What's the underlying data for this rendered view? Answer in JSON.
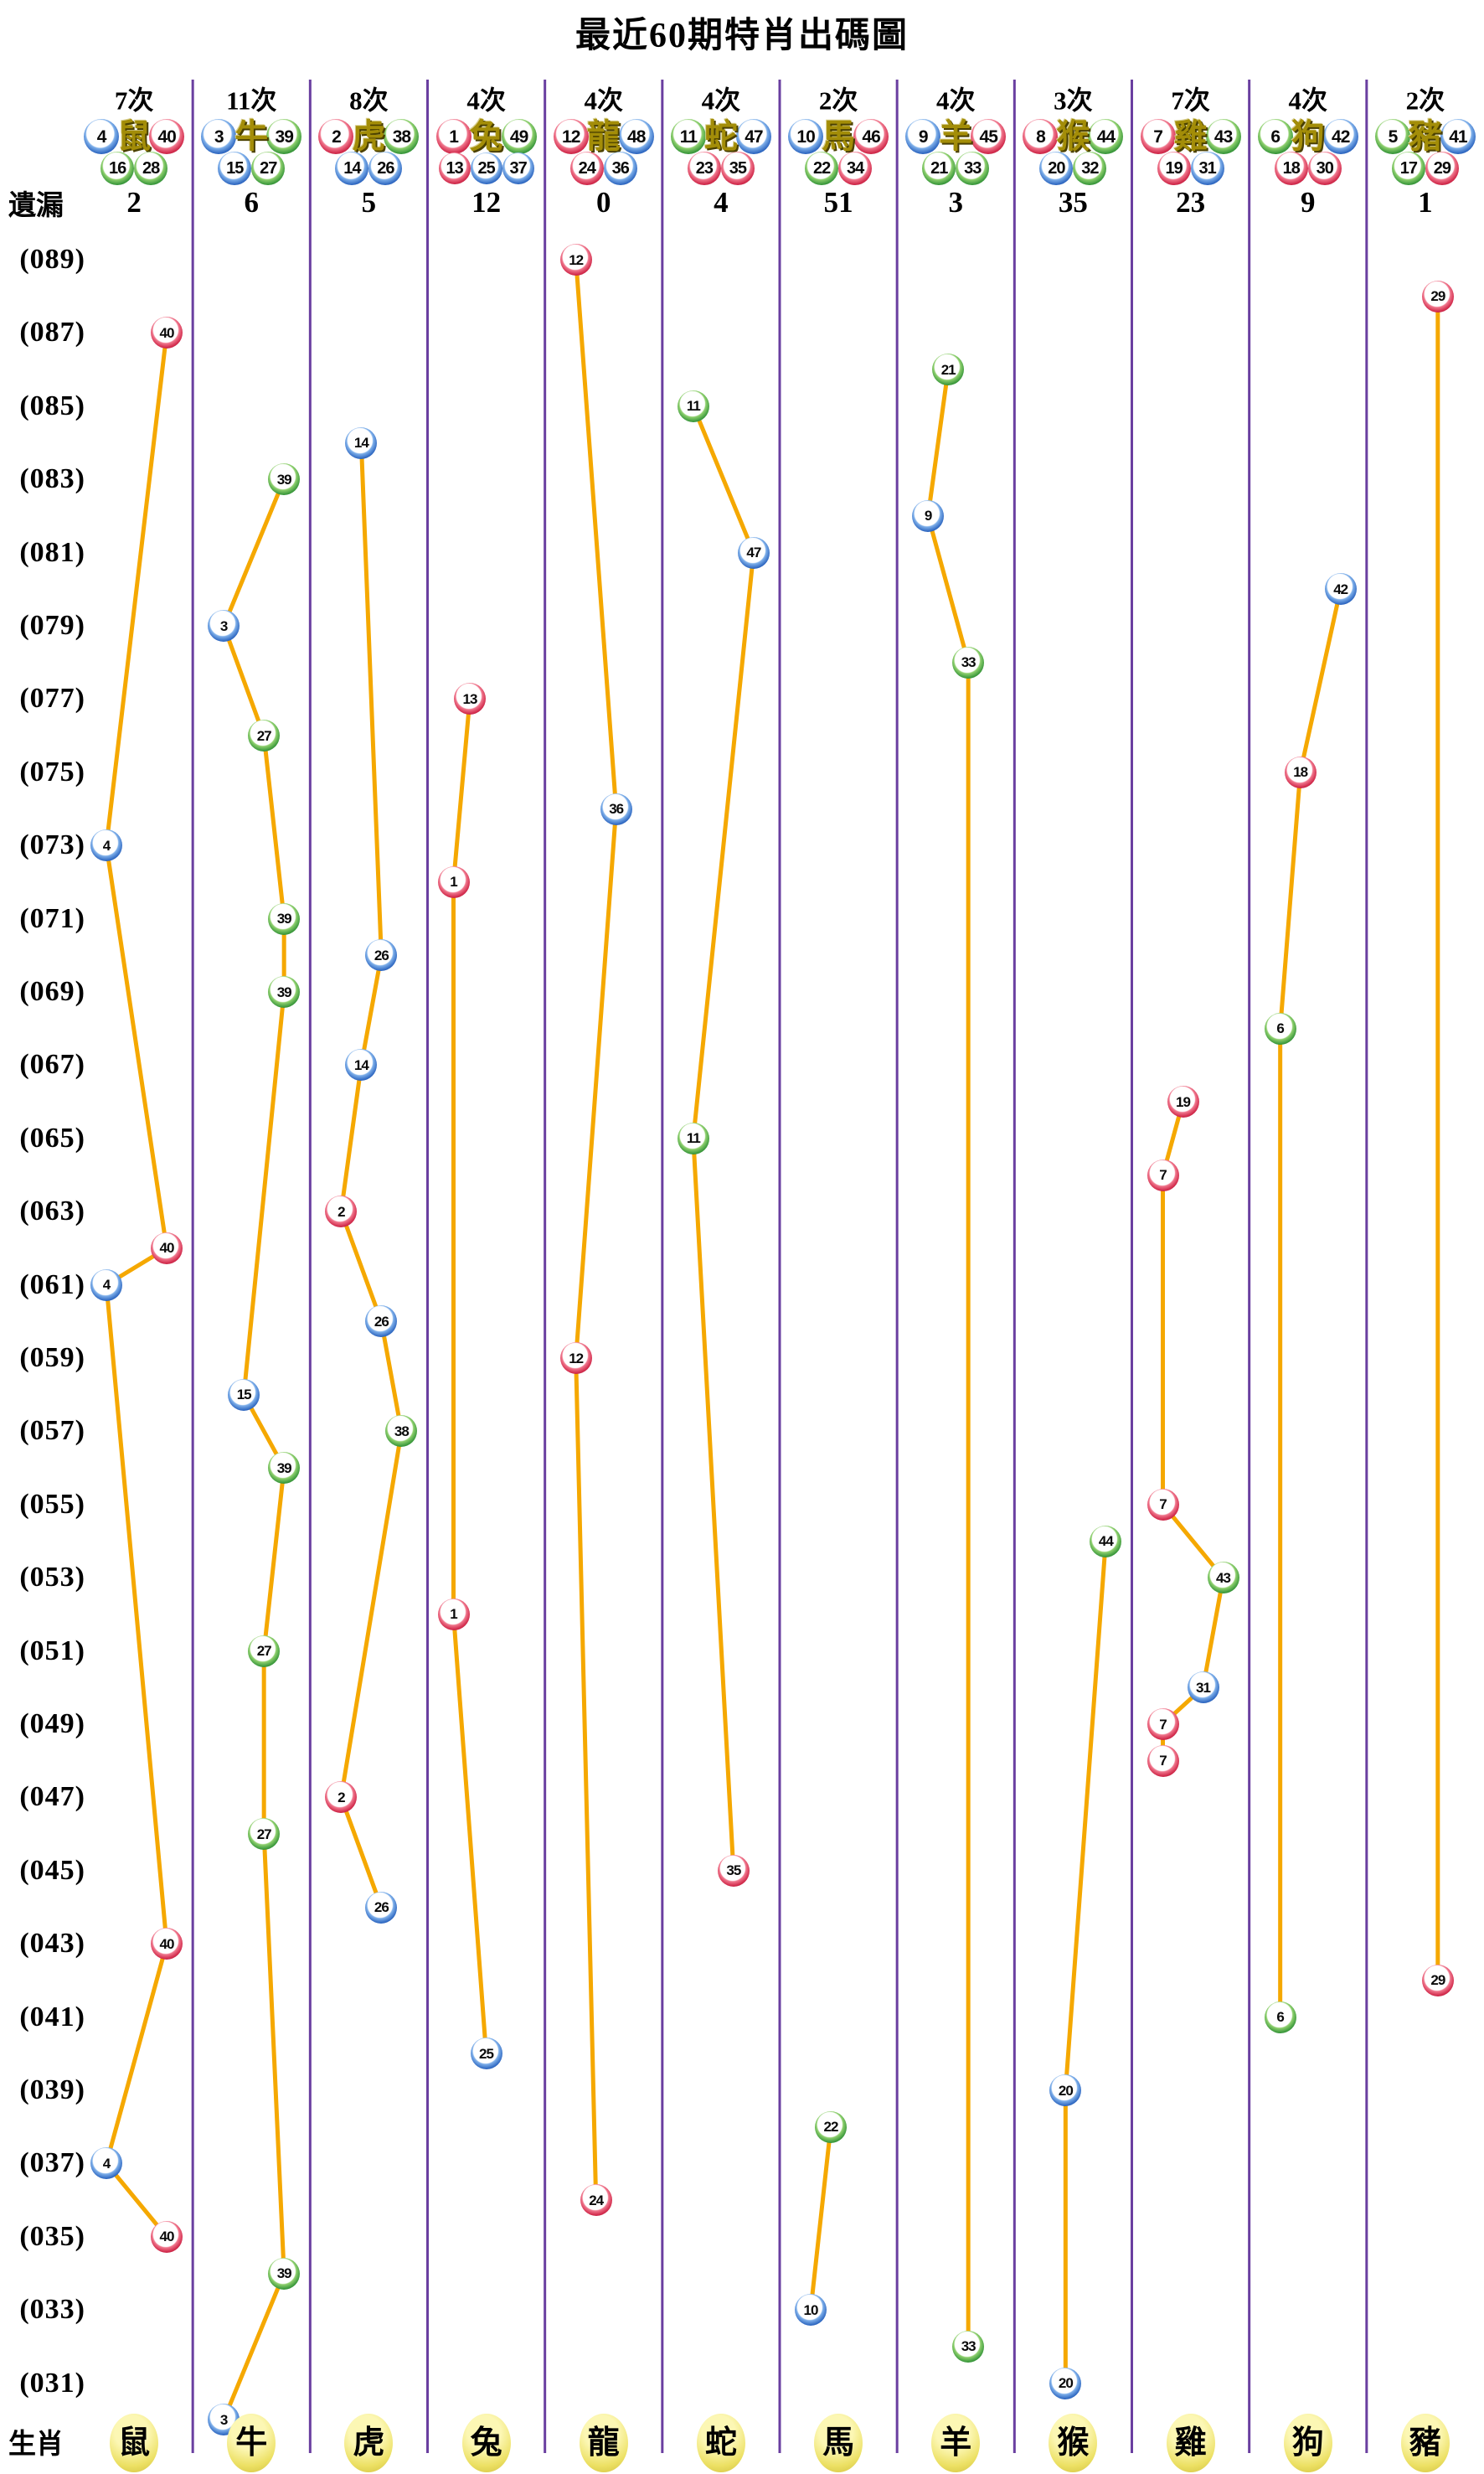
{
  "title": "最近60期特肖出碼圖",
  "labels": {
    "miss_row": "遺漏",
    "zodiac_row": "生肖"
  },
  "colors": {
    "line": "#f5a800",
    "separator": "#6a3fa0",
    "red_ball": "#c91f42",
    "blue_ball": "#2563bd",
    "green_ball": "#319433",
    "ball_center": "#ffffff",
    "zodiac_header_text": "#a38d08",
    "footer_oval": "#e9df6e"
  },
  "axis": {
    "period_labels": [
      "(089)",
      "(087)",
      "(085)",
      "(083)",
      "(081)",
      "(079)",
      "(077)",
      "(075)",
      "(073)",
      "(071)",
      "(069)",
      "(067)",
      "(065)",
      "(063)",
      "(061)",
      "(059)",
      "(057)",
      "(055)",
      "(053)",
      "(051)",
      "(049)",
      "(047)",
      "(045)",
      "(043)",
      "(041)",
      "(039)",
      "(037)",
      "(035)",
      "(033)",
      "(031)"
    ],
    "top_period": 89,
    "bottom_period": 30
  },
  "chart_data": {
    "type": "scatter",
    "title": "最近60期特肖出碼圖",
    "x_axis": "12 zodiac columns",
    "y_axis": "draw period, 089 (top) to 030 (bottom), 60 draws",
    "columns": [
      {
        "zodiac": "鼠",
        "times": "7次",
        "miss": "2",
        "balls": [
          {
            "n": 4,
            "c": "blue"
          },
          {
            "n": 16,
            "c": "green"
          },
          {
            "n": 28,
            "c": "green"
          },
          {
            "n": 40,
            "c": "red"
          }
        ],
        "points": [
          {
            "period": 87,
            "n": 40
          },
          {
            "period": 73,
            "n": 4
          },
          {
            "period": 62,
            "n": 40
          },
          {
            "period": 61,
            "n": 4
          },
          {
            "period": 43,
            "n": 40
          },
          {
            "period": 37,
            "n": 4
          },
          {
            "period": 35,
            "n": 40
          }
        ]
      },
      {
        "zodiac": "牛",
        "times": "11次",
        "miss": "6",
        "balls": [
          {
            "n": 3,
            "c": "blue"
          },
          {
            "n": 15,
            "c": "blue"
          },
          {
            "n": 27,
            "c": "green"
          },
          {
            "n": 39,
            "c": "green"
          }
        ],
        "points": [
          {
            "period": 83,
            "n": 39
          },
          {
            "period": 79,
            "n": 3
          },
          {
            "period": 76,
            "n": 27
          },
          {
            "period": 71,
            "n": 39
          },
          {
            "period": 69,
            "n": 39
          },
          {
            "period": 58,
            "n": 15
          },
          {
            "period": 56,
            "n": 39
          },
          {
            "period": 51,
            "n": 27
          },
          {
            "period": 46,
            "n": 27
          },
          {
            "period": 34,
            "n": 39
          },
          {
            "period": 30,
            "n": 3
          }
        ]
      },
      {
        "zodiac": "虎",
        "times": "8次",
        "miss": "5",
        "balls": [
          {
            "n": 2,
            "c": "red"
          },
          {
            "n": 14,
            "c": "blue"
          },
          {
            "n": 26,
            "c": "blue"
          },
          {
            "n": 38,
            "c": "green"
          }
        ],
        "points": [
          {
            "period": 84,
            "n": 14
          },
          {
            "period": 70,
            "n": 26
          },
          {
            "period": 67,
            "n": 14
          },
          {
            "period": 63,
            "n": 2
          },
          {
            "period": 60,
            "n": 26
          },
          {
            "period": 57,
            "n": 38
          },
          {
            "period": 47,
            "n": 2
          },
          {
            "period": 44,
            "n": 26
          }
        ]
      },
      {
        "zodiac": "兔",
        "times": "4次",
        "miss": "12",
        "balls": [
          {
            "n": 1,
            "c": "red"
          },
          {
            "n": 13,
            "c": "red"
          },
          {
            "n": 25,
            "c": "blue"
          },
          {
            "n": 37,
            "c": "blue"
          },
          {
            "n": 49,
            "c": "green"
          }
        ],
        "points": [
          {
            "period": 77,
            "n": 13
          },
          {
            "period": 72,
            "n": 1
          },
          {
            "period": 52,
            "n": 1
          },
          {
            "period": 40,
            "n": 25
          }
        ]
      },
      {
        "zodiac": "龍",
        "times": "4次",
        "miss": "0",
        "balls": [
          {
            "n": 12,
            "c": "red"
          },
          {
            "n": 24,
            "c": "red"
          },
          {
            "n": 36,
            "c": "blue"
          },
          {
            "n": 48,
            "c": "blue"
          }
        ],
        "points": [
          {
            "period": 89,
            "n": 12
          },
          {
            "period": 74,
            "n": 36
          },
          {
            "period": 59,
            "n": 12
          },
          {
            "period": 36,
            "n": 24
          }
        ]
      },
      {
        "zodiac": "蛇",
        "times": "4次",
        "miss": "4",
        "balls": [
          {
            "n": 11,
            "c": "green"
          },
          {
            "n": 23,
            "c": "red"
          },
          {
            "n": 35,
            "c": "red"
          },
          {
            "n": 47,
            "c": "blue"
          }
        ],
        "points": [
          {
            "period": 85,
            "n": 11
          },
          {
            "period": 81,
            "n": 47
          },
          {
            "period": 65,
            "n": 11
          },
          {
            "period": 45,
            "n": 35
          }
        ]
      },
      {
        "zodiac": "馬",
        "times": "2次",
        "miss": "51",
        "balls": [
          {
            "n": 10,
            "c": "blue"
          },
          {
            "n": 22,
            "c": "green"
          },
          {
            "n": 34,
            "c": "red"
          },
          {
            "n": 46,
            "c": "red"
          }
        ],
        "points": [
          {
            "period": 38,
            "n": 22
          },
          {
            "period": 33,
            "n": 10
          }
        ]
      },
      {
        "zodiac": "羊",
        "times": "4次",
        "miss": "3",
        "balls": [
          {
            "n": 9,
            "c": "blue"
          },
          {
            "n": 21,
            "c": "green"
          },
          {
            "n": 33,
            "c": "green"
          },
          {
            "n": 45,
            "c": "red"
          }
        ],
        "points": [
          {
            "period": 86,
            "n": 21
          },
          {
            "period": 82,
            "n": 9
          },
          {
            "period": 78,
            "n": 33
          },
          {
            "period": 32,
            "n": 33
          }
        ]
      },
      {
        "zodiac": "猴",
        "times": "3次",
        "miss": "35",
        "balls": [
          {
            "n": 8,
            "c": "red"
          },
          {
            "n": 20,
            "c": "blue"
          },
          {
            "n": 32,
            "c": "green"
          },
          {
            "n": 44,
            "c": "green"
          }
        ],
        "points": [
          {
            "period": 54,
            "n": 44
          },
          {
            "period": 39,
            "n": 20
          },
          {
            "period": 31,
            "n": 20
          }
        ]
      },
      {
        "zodiac": "雞",
        "times": "7次",
        "miss": "23",
        "balls": [
          {
            "n": 7,
            "c": "red"
          },
          {
            "n": 19,
            "c": "red"
          },
          {
            "n": 31,
            "c": "blue"
          },
          {
            "n": 43,
            "c": "green"
          }
        ],
        "points": [
          {
            "period": 66,
            "n": 19
          },
          {
            "period": 64,
            "n": 7
          },
          {
            "period": 55,
            "n": 7
          },
          {
            "period": 53,
            "n": 43
          },
          {
            "period": 50,
            "n": 31
          },
          {
            "period": 49,
            "n": 7
          },
          {
            "period": 48,
            "n": 7
          }
        ]
      },
      {
        "zodiac": "狗",
        "times": "4次",
        "miss": "9",
        "balls": [
          {
            "n": 6,
            "c": "green"
          },
          {
            "n": 18,
            "c": "red"
          },
          {
            "n": 30,
            "c": "red"
          },
          {
            "n": 42,
            "c": "blue"
          }
        ],
        "points": [
          {
            "period": 80,
            "n": 42
          },
          {
            "period": 75,
            "n": 18
          },
          {
            "period": 68,
            "n": 6
          },
          {
            "period": 41,
            "n": 6
          }
        ]
      },
      {
        "zodiac": "豬",
        "times": "2次",
        "miss": "1",
        "balls": [
          {
            "n": 5,
            "c": "green"
          },
          {
            "n": 17,
            "c": "green"
          },
          {
            "n": 29,
            "c": "red"
          },
          {
            "n": 41,
            "c": "blue"
          }
        ],
        "points": [
          {
            "period": 88,
            "n": 29
          },
          {
            "period": 42,
            "n": 29
          }
        ]
      }
    ]
  }
}
